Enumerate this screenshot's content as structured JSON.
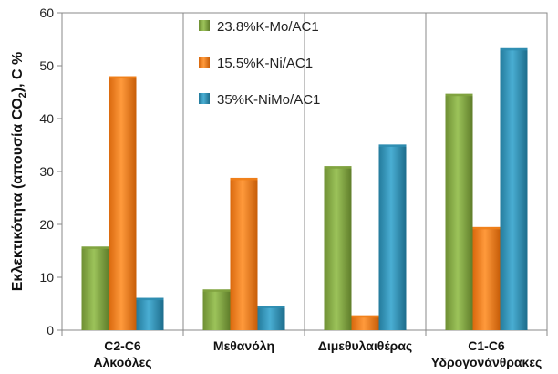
{
  "chart_data": {
    "type": "bar",
    "title": "",
    "ylabel_parts": [
      "Εκλεκτικότητα (απουσία CO",
      "2",
      "), C %"
    ],
    "xlabel": "",
    "ylim": [
      0,
      60
    ],
    "yticks": [
      "0",
      "10",
      "20",
      "30",
      "40",
      "50",
      "60"
    ],
    "categories": [
      [
        "C2-C6",
        "Αλκοόλες"
      ],
      [
        "Μεθανόλη"
      ],
      [
        "Διμεθυλαιθέρας"
      ],
      [
        "C1-C6",
        "Υδρογονάνθρακες"
      ]
    ],
    "series": [
      {
        "name": "23.8%K-Mo/AC1",
        "color": "#7fa23f",
        "values": [
          15.8,
          7.7,
          31.0,
          44.7
        ]
      },
      {
        "name": "15.5%K-Ni/AC1",
        "color": "#f07f1a",
        "values": [
          48.0,
          28.8,
          2.8,
          19.5
        ]
      },
      {
        "name": "35%K-NiMo/AC1",
        "color": "#2f8db0",
        "values": [
          6.1,
          4.6,
          35.1,
          53.3
        ]
      }
    ],
    "legend_position": "top-center",
    "grid": false
  }
}
